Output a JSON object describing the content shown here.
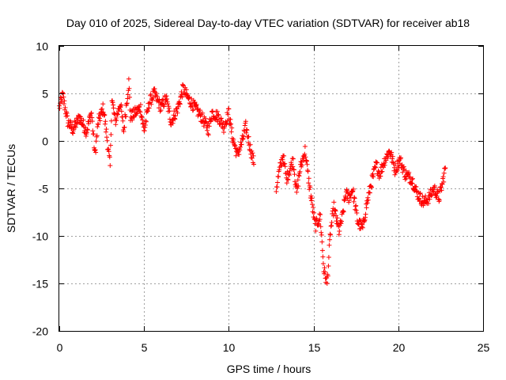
{
  "chart_data": {
    "type": "scatter",
    "title": "Day 010 of 2025, Sidereal Day-to-day VTEC variation (SDTVAR) for receiver ab18",
    "xlabel": "GPS time / hours",
    "ylabel": "SDTVAR / TECUs",
    "xlim": [
      0,
      25
    ],
    "ylim": [
      -20,
      10
    ],
    "xticks": [
      "0",
      "5",
      "10",
      "15",
      "20",
      "25"
    ],
    "yticks": [
      "-20",
      "-15",
      "-10",
      "-5",
      "0",
      "5",
      "10"
    ],
    "grid": true,
    "marker": "+",
    "series_color": "#ff0000",
    "anchors": [
      [
        0.0,
        3.5
      ],
      [
        0.2,
        4.8
      ],
      [
        0.5,
        2.0
      ],
      [
        0.8,
        1.2
      ],
      [
        1.2,
        2.5
      ],
      [
        1.6,
        1.0
      ],
      [
        1.9,
        3.0
      ],
      [
        2.1,
        -1.5
      ],
      [
        2.3,
        2.0
      ],
      [
        2.6,
        3.5
      ],
      [
        2.8,
        0.5
      ],
      [
        3.0,
        -2.7
      ],
      [
        3.1,
        4.5
      ],
      [
        3.3,
        2.0
      ],
      [
        3.6,
        4.0
      ],
      [
        3.8,
        1.0
      ],
      [
        4.1,
        6.2
      ],
      [
        4.2,
        2.5
      ],
      [
        4.5,
        3.0
      ],
      [
        4.8,
        3.5
      ],
      [
        5.0,
        1.0
      ],
      [
        5.3,
        4.0
      ],
      [
        5.6,
        5.0
      ],
      [
        6.0,
        3.5
      ],
      [
        6.3,
        4.5
      ],
      [
        6.6,
        2.0
      ],
      [
        7.0,
        3.5
      ],
      [
        7.3,
        5.5
      ],
      [
        7.6,
        4.5
      ],
      [
        8.0,
        3.5
      ],
      [
        8.4,
        2.5
      ],
      [
        8.8,
        1.2
      ],
      [
        9.0,
        3.0
      ],
      [
        9.4,
        2.5
      ],
      [
        9.7,
        1.5
      ],
      [
        10.0,
        3.0
      ],
      [
        10.2,
        0.5
      ],
      [
        10.5,
        -1.5
      ],
      [
        10.8,
        0.0
      ],
      [
        11.0,
        1.5
      ],
      [
        11.3,
        -1.0
      ],
      [
        11.5,
        -2.5
      ],
      [
        12.8,
        -5.0
      ],
      [
        13.0,
        -3.0
      ],
      [
        13.2,
        -1.5
      ],
      [
        13.4,
        -4.0
      ],
      [
        13.8,
        -2.0
      ],
      [
        14.0,
        -5.5
      ],
      [
        14.2,
        -3.0
      ],
      [
        14.5,
        -1.0
      ],
      [
        14.7,
        -4.0
      ],
      [
        14.9,
        -6.5
      ],
      [
        15.1,
        -9.0
      ],
      [
        15.4,
        -8.0
      ],
      [
        15.6,
        -13.5
      ],
      [
        15.8,
        -15.0
      ],
      [
        16.0,
        -9.5
      ],
      [
        16.2,
        -7.0
      ],
      [
        16.5,
        -9.5
      ],
      [
        16.7,
        -8.0
      ],
      [
        16.9,
        -5.5
      ],
      [
        17.1,
        -6.0
      ],
      [
        17.3,
        -5.0
      ],
      [
        17.6,
        -8.5
      ],
      [
        17.9,
        -9.2
      ],
      [
        18.1,
        -7.0
      ],
      [
        18.4,
        -4.5
      ],
      [
        18.7,
        -2.5
      ],
      [
        18.9,
        -3.5
      ],
      [
        19.2,
        -2.0
      ],
      [
        19.5,
        -1.0
      ],
      [
        19.8,
        -3.0
      ],
      [
        20.1,
        -2.0
      ],
      [
        20.4,
        -3.5
      ],
      [
        20.8,
        -4.0
      ],
      [
        21.1,
        -5.5
      ],
      [
        21.5,
        -6.5
      ],
      [
        21.8,
        -6.0
      ],
      [
        22.1,
        -5.0
      ],
      [
        22.4,
        -6.0
      ],
      [
        22.6,
        -4.5
      ],
      [
        22.8,
        -2.5
      ]
    ]
  }
}
